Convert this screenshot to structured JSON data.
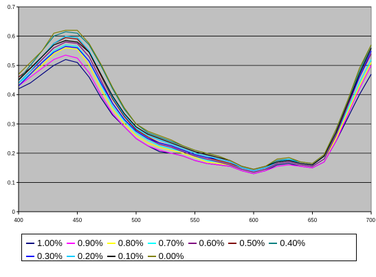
{
  "chart_data": {
    "type": "line",
    "title": "",
    "xlabel": "",
    "ylabel": "",
    "xlim": [
      400,
      700
    ],
    "ylim": [
      0,
      0.7
    ],
    "x_ticks": [
      "400",
      "450",
      "500",
      "550",
      "600",
      "650",
      "700"
    ],
    "y_ticks": [
      "0",
      "0.1",
      "0.2",
      "0.3",
      "0.4",
      "0.5",
      "0.6",
      "0.7"
    ],
    "grid": "horizontal",
    "plot_background": "#c0c0c0",
    "legend_position": "bottom",
    "x": [
      400,
      410,
      420,
      430,
      440,
      450,
      460,
      470,
      480,
      490,
      500,
      510,
      520,
      530,
      540,
      550,
      560,
      570,
      580,
      590,
      600,
      610,
      620,
      630,
      640,
      650,
      660,
      670,
      680,
      690,
      700
    ],
    "series": [
      {
        "name": "1.00%",
        "color": "#000080",
        "values": [
          0.42,
          0.44,
          0.47,
          0.5,
          0.52,
          0.51,
          0.46,
          0.39,
          0.33,
          0.29,
          0.25,
          0.225,
          0.205,
          0.2,
          0.19,
          0.175,
          0.165,
          0.16,
          0.155,
          0.14,
          0.13,
          0.14,
          0.16,
          0.165,
          0.155,
          0.15,
          0.17,
          0.24,
          0.32,
          0.4,
          0.47
        ]
      },
      {
        "name": "0.90%",
        "color": "#ff00ff",
        "values": [
          0.43,
          0.46,
          0.49,
          0.52,
          0.535,
          0.525,
          0.475,
          0.4,
          0.335,
          0.29,
          0.25,
          0.225,
          0.21,
          0.2,
          0.19,
          0.175,
          0.165,
          0.16,
          0.155,
          0.14,
          0.13,
          0.14,
          0.155,
          0.16,
          0.155,
          0.15,
          0.17,
          0.24,
          0.33,
          0.42,
          0.5
        ]
      },
      {
        "name": "0.80%",
        "color": "#ffff00",
        "values": [
          0.43,
          0.47,
          0.5,
          0.54,
          0.56,
          0.555,
          0.5,
          0.42,
          0.35,
          0.3,
          0.26,
          0.235,
          0.22,
          0.21,
          0.2,
          0.185,
          0.17,
          0.165,
          0.16,
          0.145,
          0.135,
          0.145,
          0.165,
          0.17,
          0.16,
          0.155,
          0.18,
          0.25,
          0.34,
          0.43,
          0.51
        ]
      },
      {
        "name": "0.70%",
        "color": "#00ffff",
        "values": [
          0.44,
          0.47,
          0.51,
          0.55,
          0.57,
          0.565,
          0.515,
          0.435,
          0.36,
          0.31,
          0.27,
          0.245,
          0.225,
          0.215,
          0.205,
          0.19,
          0.175,
          0.17,
          0.16,
          0.145,
          0.135,
          0.145,
          0.165,
          0.17,
          0.16,
          0.155,
          0.18,
          0.26,
          0.35,
          0.44,
          0.52
        ]
      },
      {
        "name": "0.60%",
        "color": "#800080",
        "values": [
          0.44,
          0.48,
          0.52,
          0.56,
          0.58,
          0.575,
          0.53,
          0.45,
          0.37,
          0.315,
          0.275,
          0.25,
          0.23,
          0.22,
          0.205,
          0.19,
          0.18,
          0.17,
          0.16,
          0.145,
          0.135,
          0.145,
          0.165,
          0.17,
          0.16,
          0.155,
          0.18,
          0.26,
          0.36,
          0.46,
          0.54
        ]
      },
      {
        "name": "0.50%",
        "color": "#800000",
        "values": [
          0.46,
          0.49,
          0.53,
          0.575,
          0.595,
          0.59,
          0.545,
          0.465,
          0.385,
          0.325,
          0.28,
          0.255,
          0.235,
          0.225,
          0.21,
          0.195,
          0.185,
          0.175,
          0.165,
          0.15,
          0.14,
          0.15,
          0.17,
          0.175,
          0.165,
          0.16,
          0.19,
          0.27,
          0.37,
          0.47,
          0.56
        ]
      },
      {
        "name": "0.40%",
        "color": "#008080",
        "values": [
          0.45,
          0.5,
          0.55,
          0.6,
          0.615,
          0.61,
          0.57,
          0.5,
          0.42,
          0.35,
          0.3,
          0.27,
          0.255,
          0.24,
          0.225,
          0.21,
          0.2,
          0.19,
          0.175,
          0.155,
          0.145,
          0.155,
          0.175,
          0.18,
          0.17,
          0.165,
          0.195,
          0.28,
          0.38,
          0.48,
          0.57
        ]
      },
      {
        "name": "0.30%",
        "color": "#0000ff",
        "values": [
          0.43,
          0.47,
          0.51,
          0.545,
          0.565,
          0.56,
          0.515,
          0.44,
          0.37,
          0.315,
          0.275,
          0.25,
          0.235,
          0.225,
          0.21,
          0.195,
          0.185,
          0.18,
          0.17,
          0.15,
          0.14,
          0.15,
          0.17,
          0.175,
          0.165,
          0.16,
          0.19,
          0.27,
          0.37,
          0.46,
          0.55
        ]
      },
      {
        "name": "0.20%",
        "color": "#00ccff",
        "values": [
          0.44,
          0.48,
          0.53,
          0.575,
          0.6,
          0.595,
          0.55,
          0.47,
          0.39,
          0.33,
          0.285,
          0.26,
          0.245,
          0.23,
          0.215,
          0.2,
          0.19,
          0.18,
          0.17,
          0.15,
          0.14,
          0.15,
          0.17,
          0.18,
          0.165,
          0.16,
          0.19,
          0.27,
          0.37,
          0.47,
          0.56
        ]
      },
      {
        "name": "0.10%",
        "color": "#000000",
        "values": [
          0.45,
          0.49,
          0.53,
          0.57,
          0.585,
          0.58,
          0.545,
          0.47,
          0.395,
          0.335,
          0.29,
          0.265,
          0.25,
          0.235,
          0.22,
          0.205,
          0.195,
          0.185,
          0.175,
          0.155,
          0.145,
          0.155,
          0.17,
          0.175,
          0.165,
          0.16,
          0.19,
          0.27,
          0.37,
          0.47,
          0.56
        ]
      },
      {
        "name": "0.00%",
        "color": "#808000",
        "values": [
          0.47,
          0.51,
          0.55,
          0.61,
          0.62,
          0.62,
          0.575,
          0.505,
          0.425,
          0.355,
          0.3,
          0.275,
          0.26,
          0.245,
          0.225,
          0.21,
          0.2,
          0.19,
          0.175,
          0.155,
          0.145,
          0.155,
          0.18,
          0.185,
          0.17,
          0.165,
          0.195,
          0.28,
          0.38,
          0.49,
          0.57
        ]
      }
    ]
  }
}
